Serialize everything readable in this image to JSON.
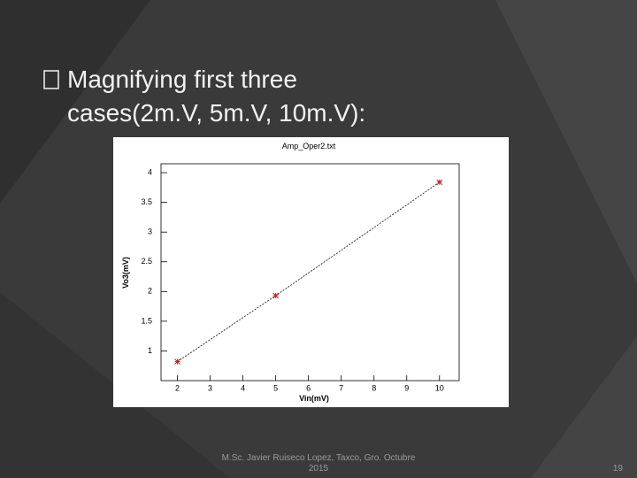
{
  "slide": {
    "bullet_lines": [
      "Magnifying first three",
      "cases(2m.V, 5m.V, 10m.V):"
    ],
    "footer_lines": [
      "M.Sc. Javier Ruiseco Lopez, Taxco, Gro. Octubre",
      "2015"
    ],
    "page_number": "19"
  },
  "chart_data": {
    "type": "scatter",
    "title": "Amp_Oper2.txt",
    "x_label": "Vin(mV)",
    "y_label": "Vo3(mV)",
    "x": [
      2,
      5,
      10
    ],
    "values": [
      0.82,
      1.93,
      3.84
    ],
    "color": "#cc2222",
    "fit_line": true,
    "xlim": [
      1.5,
      10.6
    ],
    "xticks": [
      2,
      3,
      4,
      5,
      6,
      7,
      8,
      9,
      10
    ],
    "ylim": [
      0.5,
      4.15
    ],
    "yticks": [
      1,
      1.5,
      2,
      2.5,
      3,
      3.5,
      4
    ]
  }
}
